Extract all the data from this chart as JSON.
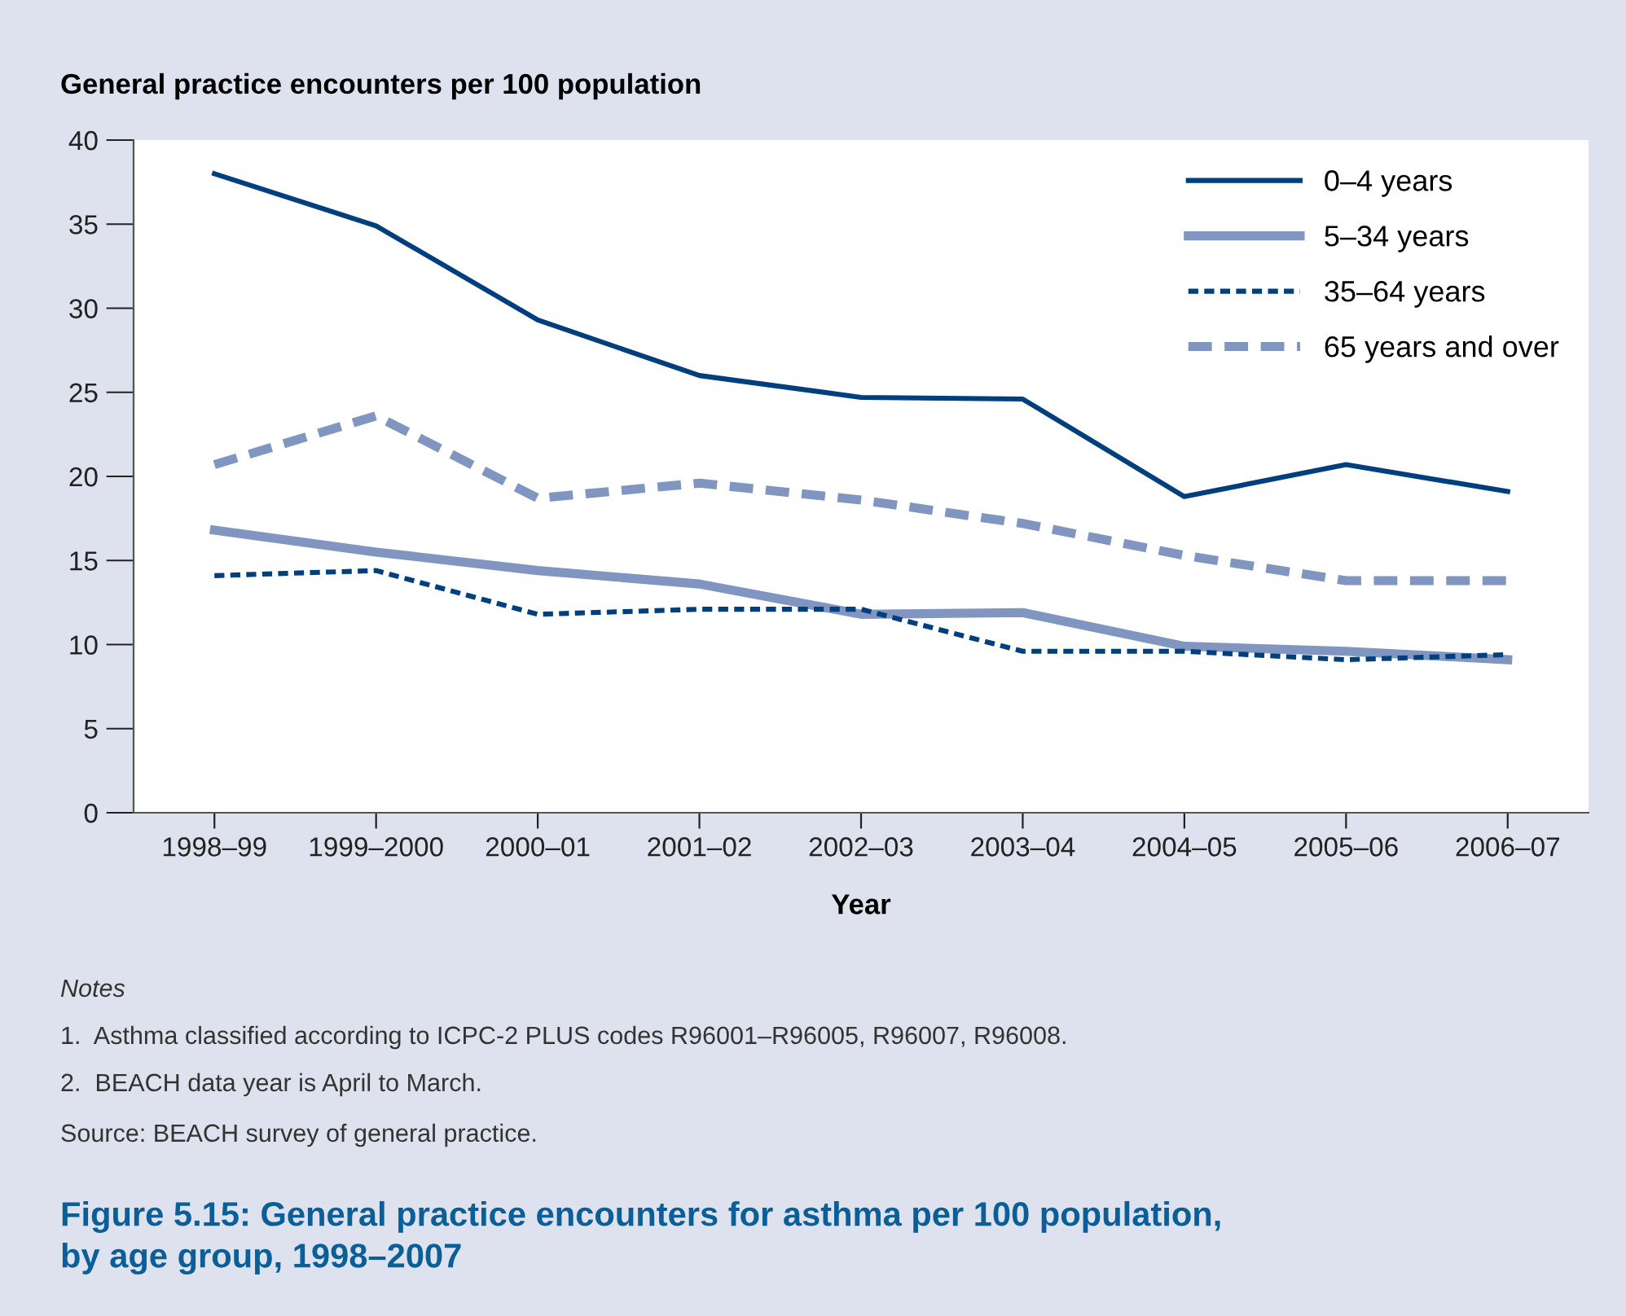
{
  "chart_data": {
    "type": "line",
    "title": "Figure 5.15: General practice encounters for asthma per 100 population,\nby age group, 1998–2007",
    "ylabel": "General practice encounters per 100 population",
    "xlabel": "Year",
    "categories": [
      "1998–99",
      "1999–2000",
      "2000–01",
      "2001–02",
      "2002–03",
      "2003–04",
      "2004–05",
      "2005–06",
      "2006–07"
    ],
    "series": [
      {
        "name": "0–4 years",
        "color": "#003f7d",
        "line_style": "solid",
        "values": [
          38.0,
          34.9,
          29.3,
          26.0,
          24.7,
          24.6,
          18.8,
          20.7,
          19.1
        ]
      },
      {
        "name": "5–34 years",
        "color": "#8096c0",
        "line_style": "solid",
        "values": [
          16.8,
          15.5,
          14.4,
          13.6,
          11.8,
          11.9,
          9.9,
          9.6,
          9.1
        ]
      },
      {
        "name": "35–64 years",
        "color": "#003f7d",
        "line_style": "dotted",
        "values": [
          14.1,
          14.4,
          11.8,
          12.1,
          12.1,
          9.6,
          9.6,
          9.1,
          9.4
        ]
      },
      {
        "name": "65 years and over",
        "color": "#8096c0",
        "line_style": "dashed",
        "values": [
          20.7,
          23.6,
          18.7,
          19.6,
          18.6,
          17.2,
          15.3,
          13.8,
          13.8
        ]
      }
    ],
    "ylim": [
      0,
      40
    ],
    "yticks": [
      0,
      5,
      10,
      15,
      20,
      25,
      30,
      35,
      40
    ],
    "grid": false,
    "legend": "top right",
    "marker": "none",
    "annotations": [
      "Notes",
      "1.  Asthma classified according to ICPC-2 PLUS codes R96001–R96005, R96007, R96008.",
      "2.  BEACH data year is April to March.",
      "Source: BEACH survey of general practice."
    ]
  }
}
